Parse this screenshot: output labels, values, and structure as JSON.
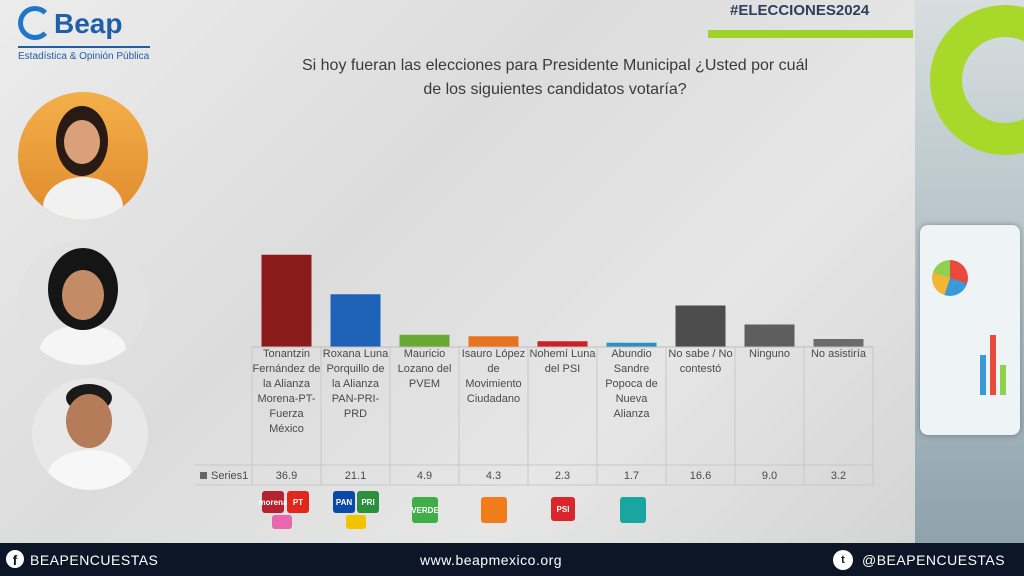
{
  "header": {
    "brand": "Beap",
    "brand_subtitle": "Estadística & Opinión Pública",
    "hashtag": "#ELECCIONES2024"
  },
  "question": {
    "line1": "Si hoy fueran las elecciones para Presidente Municipal ¿Usted por cuál",
    "line2": "de los siguientes candidatos votaría?"
  },
  "chart_data": {
    "type": "bar",
    "title": "",
    "categories": [
      "Tonantzin Fernández de la Alianza Morena-PT-Fuerza México",
      "Roxana Luna Porquillo de la Alianza PAN-PRI-PRD",
      "Mauricio Lozano del PVEM",
      "Isauro López de Movimiento Ciudadano",
      "Nohemí Luna del PSI",
      "Abundio Sandre Popoca de Nueva Alianza",
      "No sabe / No contestó",
      "Ninguno",
      "No asistiría"
    ],
    "series": [
      {
        "name": "Series1",
        "values": [
          36.9,
          21.1,
          4.9,
          4.3,
          2.3,
          1.7,
          16.6,
          9.0,
          3.2
        ],
        "labels": [
          "36.9",
          "21.1",
          "4.9",
          "4.3",
          "2.3",
          "1.7",
          "16.6",
          "9.0",
          "3.2"
        ]
      }
    ],
    "colors": [
      "#8b1a1a",
      "#1f63b8",
      "#6aa834",
      "#e8731f",
      "#cc2026",
      "#2b8fc4",
      "#4d4d4d",
      "#5e5e5e",
      "#6b6b6b"
    ],
    "ylim": [
      0,
      40
    ],
    "grid": false,
    "legend": "table-left"
  },
  "party_logos": {
    "morena": "morena",
    "pt": "PT",
    "pan": "PAN",
    "pri": "PRI",
    "verde": "VERDE",
    "psi": "PSI"
  },
  "footer": {
    "facebook": "BEAPENCUESTAS",
    "website": "www.beapmexico.org",
    "twitter": "@BEAPENCUESTAS"
  }
}
